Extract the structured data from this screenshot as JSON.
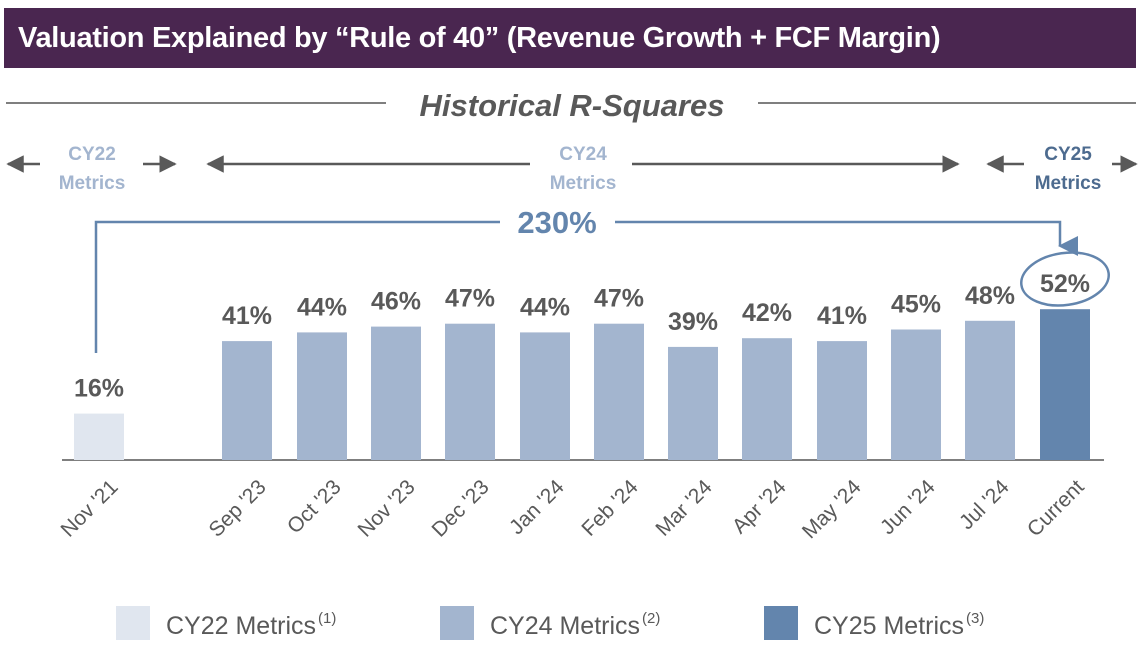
{
  "title": "Valuation Explained by “Rule of 40” (Revenue Growth + FCF Margin)",
  "section_title": "Historical R-Squares",
  "period_groups": [
    {
      "line1": "CY22",
      "line2": "Metrics"
    },
    {
      "line1": "CY24",
      "line2": "Metrics"
    },
    {
      "line1": "CY25",
      "line2": "Metrics"
    }
  ],
  "change_label": "230%",
  "colors": {
    "banner": "#4a2650",
    "cy22": "#e0e6ef",
    "cy24": "#a3b5cf",
    "cy25": "#6385ad",
    "label": "#595959",
    "accent": "#6385ad"
  },
  "chart_data": {
    "type": "bar",
    "categories": [
      "Nov '21",
      "Sep '23",
      "Oct '23",
      "Nov '23",
      "Dec '23",
      "Jan '24",
      "Feb '24",
      "Mar '24",
      "Apr '24",
      "May '24",
      "Jun '24",
      "Jul '24",
      "Current"
    ],
    "values": [
      16,
      41,
      44,
      46,
      47,
      44,
      47,
      39,
      42,
      41,
      45,
      48,
      52
    ],
    "data_labels": [
      "16%",
      "41%",
      "44%",
      "46%",
      "47%",
      "44%",
      "47%",
      "39%",
      "42%",
      "41%",
      "45%",
      "48%",
      "52%"
    ],
    "group": [
      "cy22",
      "cy24",
      "cy24",
      "cy24",
      "cy24",
      "cy24",
      "cy24",
      "cy24",
      "cy24",
      "cy24",
      "cy24",
      "cy24",
      "cy25"
    ],
    "ylim": [
      0,
      60
    ],
    "grid": false,
    "legend_position": "bottom",
    "legend": [
      {
        "key": "cy22",
        "label": "CY22 Metrics",
        "note": "(1)"
      },
      {
        "key": "cy24",
        "label": "CY24 Metrics",
        "note": "(2)"
      },
      {
        "key": "cy25",
        "label": "CY25 Metrics",
        "note": "(3)"
      }
    ]
  }
}
